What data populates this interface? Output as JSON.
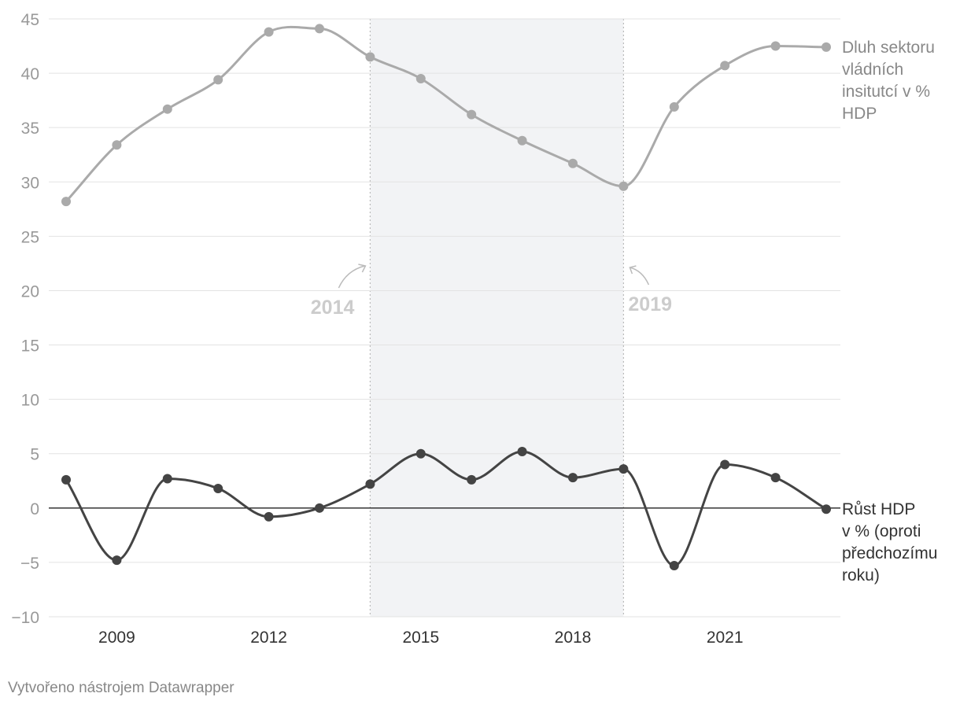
{
  "chart_data": {
    "type": "line",
    "x": [
      2008,
      2009,
      2010,
      2011,
      2012,
      2013,
      2014,
      2015,
      2016,
      2017,
      2018,
      2019,
      2020,
      2021,
      2022,
      2023
    ],
    "series": [
      {
        "name": "Dluh sektoru vládních insitutcí v % HDP",
        "name_lines": [
          "Dluh sektoru",
          "vládních",
          "insitutcí v %",
          "HDP"
        ],
        "color": "#aaaaaa",
        "values": [
          28.2,
          33.4,
          36.7,
          39.4,
          43.8,
          44.1,
          41.5,
          39.5,
          36.2,
          33.8,
          31.7,
          29.6,
          36.9,
          40.7,
          42.5,
          42.4
        ]
      },
      {
        "name": "Růst HDP v % (oproti předchozímu roku)",
        "name_lines": [
          "Růst HDP",
          "v % (oproti",
          "předchozímu",
          "roku)"
        ],
        "color": "#444444",
        "values": [
          2.6,
          -4.8,
          2.7,
          1.8,
          -0.8,
          0.0,
          2.2,
          5.0,
          2.6,
          5.2,
          2.8,
          3.6,
          -5.3,
          4.0,
          2.8,
          -0.1
        ]
      }
    ],
    "ylim": [
      -10,
      45
    ],
    "yticks": [
      45,
      40,
      35,
      30,
      25,
      20,
      15,
      10,
      5,
      0,
      -5,
      -10
    ],
    "ytick_labels": [
      "45",
      "40",
      "35",
      "30",
      "25",
      "20",
      "15",
      "10",
      "5",
      "0",
      "−5",
      "−10"
    ],
    "xticks": [
      2009,
      2012,
      2015,
      2018,
      2021
    ],
    "xtick_labels": [
      "2009",
      "2012",
      "2015",
      "2018",
      "2021"
    ],
    "highlight_range": [
      2014,
      2019
    ],
    "annotations": [
      {
        "label": "2014",
        "x": 2014
      },
      {
        "label": "2019",
        "x": 2019
      }
    ],
    "grid": true,
    "title": "",
    "xlabel": "",
    "ylabel": ""
  },
  "footer": {
    "credit": "Vytvořeno nástrojem Datawrapper"
  }
}
